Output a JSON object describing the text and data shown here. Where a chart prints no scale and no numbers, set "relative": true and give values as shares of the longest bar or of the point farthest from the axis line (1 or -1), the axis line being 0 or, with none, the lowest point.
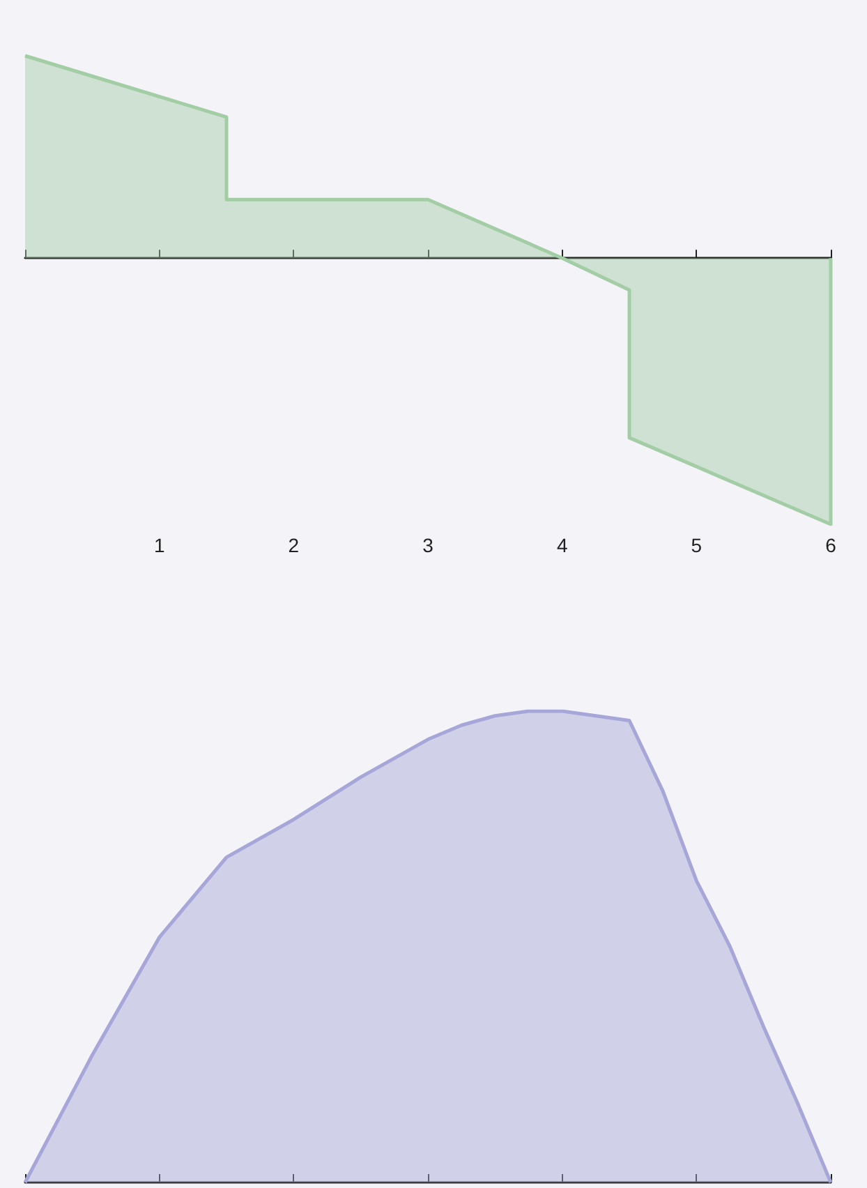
{
  "chart_data": [
    {
      "type": "area",
      "relative": true,
      "x": [
        0,
        1.5,
        1.5,
        3,
        4,
        4.5,
        4.5,
        6,
        6
      ],
      "xlim": [
        0,
        6
      ],
      "xticks": [
        {
          "value": 0,
          "label": null
        },
        1,
        2,
        3,
        4,
        5,
        6
      ],
      "tick_labels": "x",
      "series": [
        {
          "color": "#a3cda4",
          "values": [
            0.76,
            0.53,
            0.22,
            0.22,
            0,
            -0.12,
            -0.675,
            -1,
            0
          ]
        }
      ]
    },
    {
      "type": "area",
      "relative": true,
      "x": [
        0,
        0.5,
        1,
        1.5,
        2,
        2.5,
        3,
        3.25,
        3.5,
        3.75,
        4,
        4.25,
        4.5,
        4.75,
        5,
        5.25,
        5.5,
        5.75,
        6
      ],
      "xlim": [
        0,
        6
      ],
      "xticks": [
        {
          "value": 0,
          "label": null
        },
        {
          "value": 1,
          "label": null
        },
        {
          "value": 2,
          "label": null
        },
        {
          "value": 3,
          "label": null
        },
        {
          "value": 4,
          "label": null
        },
        {
          "value": 5,
          "label": null
        },
        {
          "value": 6,
          "label": null
        }
      ],
      "tick_labels": false,
      "series": [
        {
          "color": "#a6a6d8",
          "values": [
            0,
            0.27,
            0.52,
            0.69,
            0.77,
            0.86,
            0.94,
            0.97,
            0.99,
            1,
            1,
            0.99,
            0.98,
            0.83,
            0.64,
            0.5,
            0.33,
            0.17,
            0
          ]
        }
      ]
    }
  ]
}
